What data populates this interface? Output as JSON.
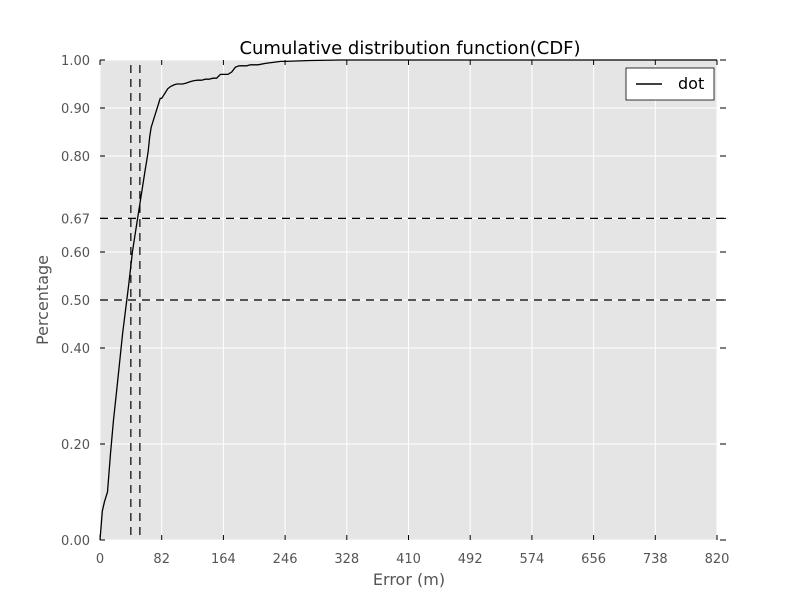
{
  "chart_data": {
    "type": "line",
    "title": "Cumulative distribution function(CDF)",
    "xlabel": "Error (m)",
    "ylabel": "Percentage",
    "xlim": [
      0,
      820
    ],
    "ylim": [
      0.0,
      1.0
    ],
    "xticks": [
      0,
      82,
      164,
      246,
      328,
      410,
      492,
      574,
      656,
      738,
      820
    ],
    "xtick_labels": [
      "0",
      "82",
      "164",
      "246",
      "328",
      "410",
      "492",
      "574",
      "656",
      "738",
      "820"
    ],
    "yticks": [
      0.0,
      0.2,
      0.4,
      0.5,
      0.6,
      0.67,
      0.8,
      0.9,
      1.0
    ],
    "ytick_labels": [
      "0.00",
      "0.20",
      "0.40",
      "0.50",
      "0.60",
      "0.67",
      "0.80",
      "0.90",
      "1.00"
    ],
    "grid": true,
    "legend_position": "top-right",
    "series": [
      {
        "name": "dot",
        "color": "#000000",
        "x": [
          0,
          3,
          6,
          10,
          14,
          18,
          22,
          26,
          30,
          34,
          38,
          41,
          43,
          46,
          48,
          50,
          52,
          54,
          56,
          58,
          60,
          62,
          64,
          66,
          68,
          70,
          72,
          74,
          76,
          78,
          80,
          82,
          86,
          90,
          94,
          98,
          102,
          106,
          110,
          115,
          120,
          125,
          130,
          135,
          140,
          145,
          150,
          155,
          160,
          165,
          170,
          175,
          180,
          185,
          190,
          195,
          200,
          210,
          220,
          230,
          240,
          246,
          260,
          280,
          320,
          460,
          820
        ],
        "y": [
          0.0,
          0.06,
          0.08,
          0.1,
          0.18,
          0.25,
          0.31,
          0.37,
          0.43,
          0.48,
          0.53,
          0.57,
          0.6,
          0.63,
          0.65,
          0.67,
          0.69,
          0.71,
          0.73,
          0.75,
          0.77,
          0.79,
          0.81,
          0.84,
          0.86,
          0.87,
          0.88,
          0.89,
          0.9,
          0.91,
          0.92,
          0.92,
          0.93,
          0.94,
          0.945,
          0.948,
          0.95,
          0.95,
          0.95,
          0.952,
          0.955,
          0.957,
          0.958,
          0.958,
          0.96,
          0.96,
          0.962,
          0.962,
          0.97,
          0.97,
          0.97,
          0.975,
          0.985,
          0.988,
          0.988,
          0.988,
          0.99,
          0.99,
          0.993,
          0.995,
          0.997,
          0.997,
          0.998,
          0.999,
          1.0,
          1.0,
          1.0
        ]
      }
    ],
    "reference_lines": {
      "horizontal": [
        0.67,
        0.5
      ],
      "vertical": [
        41,
        53
      ]
    }
  },
  "colors": {
    "plot_background": "#e5e5e5",
    "grid": "#ffffff",
    "line": "#000000",
    "text": "#555555",
    "axis_label": "#555555"
  }
}
